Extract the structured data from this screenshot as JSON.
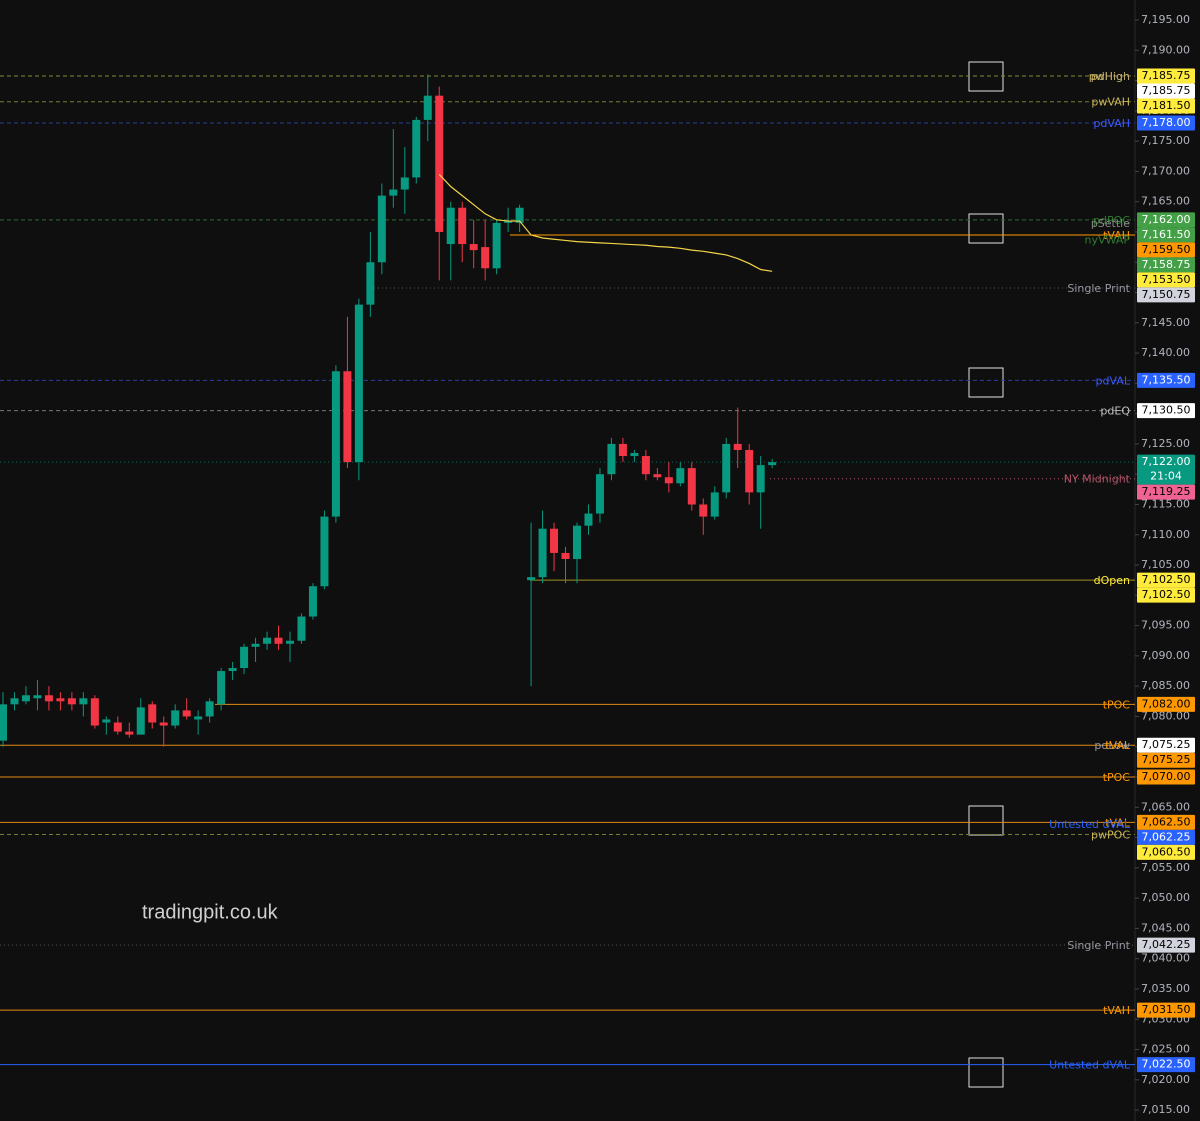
{
  "chart_data": {
    "type": "candlestick",
    "watermark": "tradingpit.co.uk",
    "ylim": [
      7013.2,
      7198.3
    ],
    "yticks": [
      {
        "value": 7015,
        "label": "7,015.00"
      },
      {
        "value": 7020,
        "label": "7,020.00"
      },
      {
        "value": 7025,
        "label": "7,025.00"
      },
      {
        "value": 7030,
        "label": "7,030.00"
      },
      {
        "value": 7035,
        "label": "7,035.00"
      },
      {
        "value": 7040,
        "label": "7,040.00"
      },
      {
        "value": 7045,
        "label": "7,045.00"
      },
      {
        "value": 7050,
        "label": "7,050.00"
      },
      {
        "value": 7055,
        "label": "7,055.00"
      },
      {
        "value": 7060,
        "label": "7,060.00"
      },
      {
        "value": 7065,
        "label": "7,065.00"
      },
      {
        "value": 7070,
        "label": "7,070.00"
      },
      {
        "value": 7075,
        "label": "7,075.00"
      },
      {
        "value": 7080,
        "label": "7,080.00"
      },
      {
        "value": 7085,
        "label": "7,085.00"
      },
      {
        "value": 7090,
        "label": "7,090.00"
      },
      {
        "value": 7095,
        "label": "7,095.00"
      },
      {
        "value": 7100,
        "label": "7,100.00"
      },
      {
        "value": 7105,
        "label": "7,105.00"
      },
      {
        "value": 7110,
        "label": "7,110.00"
      },
      {
        "value": 7115,
        "label": "7,115.00"
      },
      {
        "value": 7120,
        "label": "7,120.00"
      },
      {
        "value": 7125,
        "label": "7,125.00"
      },
      {
        "value": 7130,
        "label": "7,130.00"
      },
      {
        "value": 7135,
        "label": "7,135.00"
      },
      {
        "value": 7140,
        "label": "7,140.00"
      },
      {
        "value": 7145,
        "label": "7,145.00"
      },
      {
        "value": 7150,
        "label": "7,150.00"
      },
      {
        "value": 7155,
        "label": "7,155.00"
      },
      {
        "value": 7160,
        "label": "7,160.00"
      },
      {
        "value": 7165,
        "label": "7,165.00"
      },
      {
        "value": 7170,
        "label": "7,170.00"
      },
      {
        "value": 7175,
        "label": "7,175.00"
      },
      {
        "value": 7180,
        "label": "7,180.00"
      },
      {
        "value": 7185,
        "label": "7,185.00"
      },
      {
        "value": 7190,
        "label": "7,190.00"
      },
      {
        "value": 7195,
        "label": "7,195.00"
      }
    ],
    "categories": [
      null,
      null,
      null,
      null,
      null,
      null,
      null,
      null,
      null,
      null,
      null,
      null,
      null,
      null,
      null,
      null,
      null,
      null,
      null,
      null,
      null,
      null,
      null,
      null,
      null,
      null,
      null,
      null,
      null,
      null,
      null,
      null,
      null,
      null,
      null,
      null,
      null,
      null,
      null,
      null,
      null,
      null,
      null,
      null,
      null,
      null,
      null,
      null,
      null,
      null,
      null,
      null,
      null,
      null,
      null,
      null,
      null,
      null,
      null,
      null,
      null,
      null,
      null,
      null,
      null,
      null,
      null,
      null
    ],
    "up_color": "#089981",
    "down_color": "#f23645",
    "open": [
      7076,
      7082,
      7082.5,
      7083,
      7083.5,
      7083,
      7083,
      7082,
      7083,
      7079,
      7079,
      7077.5,
      7077,
      7082,
      7079,
      7078.5,
      7081,
      7079.5,
      7080,
      7082,
      7087.5,
      7088,
      7091.5,
      7092,
      7093,
      7092,
      7092.5,
      7096.5,
      7101.5,
      7113,
      7137,
      7122,
      7148,
      7155,
      7166,
      7167,
      7169,
      7178.5,
      7182.5,
      7158,
      7164,
      7158,
      7157.5,
      7154,
      7161.5,
      7161.5,
      7102.5,
      7103,
      7111,
      7107,
      7106,
      7111.5,
      7113.5,
      7120,
      7125,
      7123,
      7123,
      7120,
      7119.5,
      7118.5,
      7121,
      7115,
      7113,
      7117,
      7125,
      7124,
      7117,
      7121.5
    ],
    "high": [
      7084,
      7084,
      7085,
      7086,
      7085,
      7084,
      7084,
      7084,
      7083.5,
      7080,
      7080,
      7079,
      7083,
      7082.5,
      7080,
      7082,
      7083,
      7081,
      7083,
      7088,
      7089,
      7092,
      7093,
      7094,
      7095,
      7094,
      7097,
      7102,
      7114,
      7138,
      7146,
      7149,
      7160,
      7168,
      7177,
      7174,
      7179,
      7186,
      7184,
      7165,
      7165,
      7162,
      7162,
      7162,
      7164,
      7164.5,
      7112,
      7114,
      7112,
      7108,
      7112,
      7115,
      7121,
      7126,
      7126,
      7124,
      7124,
      7121,
      7122,
      7122,
      7122,
      7116,
      7118,
      7126,
      7131,
      7125,
      7123,
      7122.5
    ],
    "low": [
      7075,
      7081,
      7082,
      7081,
      7081,
      7081,
      7081,
      7080,
      7078,
      7077,
      7077,
      7076.5,
      7077,
      7078,
      7075,
      7078,
      7079.5,
      7077,
      7079,
      7081,
      7086,
      7087,
      7089,
      7091,
      7091,
      7089,
      7092,
      7096,
      7101,
      7112,
      7121,
      7119,
      7146,
      7153,
      7164,
      7163,
      7168,
      7175,
      7152,
      7152,
      7155,
      7154,
      7152,
      7153,
      7160,
      7160,
      7085,
      7102,
      7104,
      7102,
      7102,
      7110,
      7112,
      7119,
      7122,
      7122,
      7119,
      7119,
      7117,
      7118,
      7114,
      7110,
      7112.5,
      7116,
      7121,
      7115,
      7111,
      7121
    ],
    "close": [
      7082,
      7083,
      7083.5,
      7083.5,
      7082.5,
      7082.5,
      7082,
      7083,
      7078.5,
      7079.5,
      7077.5,
      7077,
      7081.5,
      7079,
      7078.5,
      7081,
      7080,
      7080,
      7082.5,
      7087.5,
      7088,
      7091.5,
      7092,
      7093,
      7092,
      7092.5,
      7096.5,
      7101.5,
      7113,
      7137,
      7122,
      7148,
      7155,
      7166,
      7167,
      7169,
      7178.5,
      7182.5,
      7160,
      7164,
      7158,
      7157,
      7154,
      7161.5,
      7161.8,
      7164,
      7103,
      7111,
      7107,
      7106,
      7111.5,
      7113.5,
      7120,
      7125,
      7123,
      7123.5,
      7120,
      7119.5,
      7118.5,
      7121,
      7115,
      7113,
      7117,
      7125,
      7124,
      7117,
      7121.5,
      7122
    ],
    "vwap": {
      "color": "#f5d547",
      "values": [
        null,
        null,
        null,
        null,
        null,
        null,
        null,
        null,
        null,
        null,
        null,
        null,
        null,
        null,
        null,
        null,
        null,
        null,
        null,
        null,
        null,
        null,
        null,
        null,
        null,
        null,
        null,
        null,
        null,
        null,
        null,
        null,
        null,
        null,
        null,
        null,
        null,
        null,
        7169.5,
        7167.5,
        7166,
        7164.5,
        7163,
        7162,
        7161.8,
        7161.8,
        7159.5,
        7159,
        7158.8,
        7158.6,
        7158.4,
        7158.3,
        7158.2,
        7158.1,
        7158,
        7157.9,
        7157.8,
        7157.6,
        7157.5,
        7157.3,
        7157,
        7156.8,
        7156.5,
        7156.2,
        7155.6,
        7154.8,
        7153.8,
        7153.5
      ]
    },
    "countdown": "21:04",
    "levels": [
      {
        "label": "pwHigh",
        "label_color": "#c9b458",
        "tag": {
          "value": 7185.75,
          "label": "7,185.75"
        },
        "tag_color": "#ffeb3b",
        "tag_text": "#000000",
        "line_color": "#8a8a3a",
        "line_style": "dashed"
      },
      {
        "label": "pdHigh",
        "label_color": "#b9a46a",
        "tag": {
          "value": 7185.75,
          "label": "7,185.75"
        },
        "tag_color": "#ffffff",
        "tag_text": "#000000",
        "line_color": "#8a8a3a",
        "line_style": "none"
      },
      {
        "label": "pwVAH",
        "label_color": "#c9b458",
        "tag": {
          "value": 7181.5,
          "label": "7,181.50"
        },
        "tag_color": "#ffeb3b",
        "tag_text": "#000000",
        "line_color": "#7a7a30",
        "line_style": "dashed"
      },
      {
        "label": "pdVAH",
        "label_color": "#3d5afe",
        "tag": {
          "value": 7178,
          "label": "7,178.00"
        },
        "tag_color": "#2962ff",
        "tag_text": "#ffffff",
        "line_color": "#2a3f9a",
        "line_style": "dashed"
      },
      {
        "label": "pdPOC",
        "label_color": "#2e7d32",
        "tag": {
          "value": 7162,
          "label": "7,162.00"
        },
        "tag_color": "#43a047",
        "tag_text": "#ffffff",
        "line_color": "#2e6b30",
        "line_style": "dashed"
      },
      {
        "label": "pSettle",
        "label_color": "#8a8a8a",
        "tag": {
          "value": 7161.5,
          "label": "7,161.50"
        },
        "tag_color": "#43a047",
        "tag_text": "#ffffff",
        "line_color": "#555555",
        "line_style": "none"
      },
      {
        "label": "tVAH",
        "label_color": "#ff9800",
        "tag": {
          "value": 7159.5,
          "label": "7,159.50"
        },
        "tag_color": "#ff9800",
        "tag_text": "#000000",
        "line_color": "#ff9800",
        "line_style": "solid"
      },
      {
        "label": "nyVWAP",
        "label_color": "#2e7d32",
        "tag": {
          "value": 7158.75,
          "label": "7,158.75"
        },
        "tag_color": "#43a047",
        "tag_text": "#ffffff",
        "line_color": "#2e6b30",
        "line_style": "none"
      },
      {
        "tag": {
          "value": 7153.5,
          "label": "7,153.50"
        },
        "tag_color": "#ffeb3b",
        "tag_text": "#000000",
        "line_color": "#f5d547",
        "line_style": "none"
      },
      {
        "label": "Single Print",
        "label_color": "#9598a1",
        "tag": {
          "value": 7150.75,
          "label": "7,150.75"
        },
        "tag_color": "#d1d4dc",
        "tag_text": "#000000",
        "line_color": "#555555",
        "line_style": "dotted"
      },
      {
        "label": "pdVAL",
        "label_color": "#3d5afe",
        "tag": {
          "value": 7135.5,
          "label": "7,135.50"
        },
        "tag_color": "#2962ff",
        "tag_text": "#ffffff",
        "line_color": "#2a3f9a",
        "line_style": "dashed"
      },
      {
        "label": "pdEQ",
        "label_color": "#c0c0c0",
        "tag": {
          "value": 7130.5,
          "label": "7,130.50"
        },
        "tag_color": "#ffffff",
        "tag_text": "#000000",
        "line_color": "#777777",
        "line_style": "dashed"
      },
      {
        "tag": {
          "value": 7122,
          "label": "7,122.00"
        },
        "tag_color": "#089981",
        "tag_text": "#ffffff",
        "line_color": "#0b6b5a",
        "line_style": "dotted"
      },
      {
        "label": "NY Midnight",
        "label_color": "#b3546a",
        "tag": {
          "value": 7119.25,
          "label": "7,119.25"
        },
        "tag_color": "#f06292",
        "tag_text": "#000000",
        "line_color": "#b3546a",
        "line_style": "dotted"
      },
      {
        "label": "dOpen",
        "label_color": "#ffeb3b",
        "tag": {
          "value": 7102.5,
          "label": "7,102.50"
        },
        "tag_color": "#ffeb3b",
        "tag_text": "#000000",
        "line_color": "#a09020",
        "line_style": "solid"
      },
      {
        "tag": {
          "value": 7102.5,
          "label": "7,102.50"
        },
        "tag_color": "#ffeb3b",
        "tag_text": "#000000",
        "line_color": "#a09020",
        "line_style": "none"
      },
      {
        "label": "tPOC",
        "label_color": "#ff9800",
        "tag": {
          "value": 7082,
          "label": "7,082.00"
        },
        "tag_color": "#ff9800",
        "tag_text": "#000000",
        "line_color": "#e08a10",
        "line_style": "solid"
      },
      {
        "label": "pdLow",
        "label_color": "#9598a1",
        "tag": {
          "value": 7075.25,
          "label": "7,075.25"
        },
        "tag_color": "#ffffff",
        "tag_text": "#000000",
        "line_color": "#e08a10",
        "line_style": "solid"
      },
      {
        "label": "tVAL",
        "label_color": "#ff9800",
        "tag": {
          "value": 7075.25,
          "label": "7,075.25"
        },
        "tag_color": "#ff9800",
        "tag_text": "#000000",
        "line_color": "#e08a10",
        "line_style": "none"
      },
      {
        "label": "tPOC",
        "label_color": "#ff9800",
        "tag": {
          "value": 7070,
          "label": "7,070.00"
        },
        "tag_color": "#ff9800",
        "tag_text": "#000000",
        "line_color": "#e08a10",
        "line_style": "solid"
      },
      {
        "label": "tVAL",
        "label_color": "#ff9800",
        "tag": {
          "value": 7062.5,
          "label": "7,062.50"
        },
        "tag_color": "#ff9800",
        "tag_text": "#000000",
        "line_color": "#e08a10",
        "line_style": "solid"
      },
      {
        "label": "Untested dVAL",
        "label_color": "#2962ff",
        "tag": {
          "value": 7062.25,
          "label": "7,062.25"
        },
        "tag_color": "#2962ff",
        "tag_text": "#ffffff",
        "line_color": "#2a3f9a",
        "line_style": "none"
      },
      {
        "label": "pwPOC",
        "label_color": "#c9b458",
        "tag": {
          "value": 7060.5,
          "label": "7,060.50"
        },
        "tag_color": "#ffeb3b",
        "tag_text": "#000000",
        "line_color": "#7a7a30",
        "line_style": "dashed"
      },
      {
        "label": "Single Print",
        "label_color": "#9598a1",
        "tag": {
          "value": 7042.25,
          "label": "7,042.25"
        },
        "tag_color": "#d1d4dc",
        "tag_text": "#000000",
        "line_color": "#555555",
        "line_style": "dotted"
      },
      {
        "label": "tVAH",
        "label_color": "#ff9800",
        "tag": {
          "value": 7031.5,
          "label": "7,031.50"
        },
        "tag_color": "#ff9800",
        "tag_text": "#000000",
        "line_color": "#e08a10",
        "line_style": "solid"
      },
      {
        "label": "Untested dVAL",
        "label_color": "#2962ff",
        "tag": {
          "value": 7022.5,
          "label": "7,022.50"
        },
        "tag_color": "#2962ff",
        "tag_text": "#ffffff",
        "line_color": "#2962ff",
        "line_style": "solid"
      }
    ]
  }
}
